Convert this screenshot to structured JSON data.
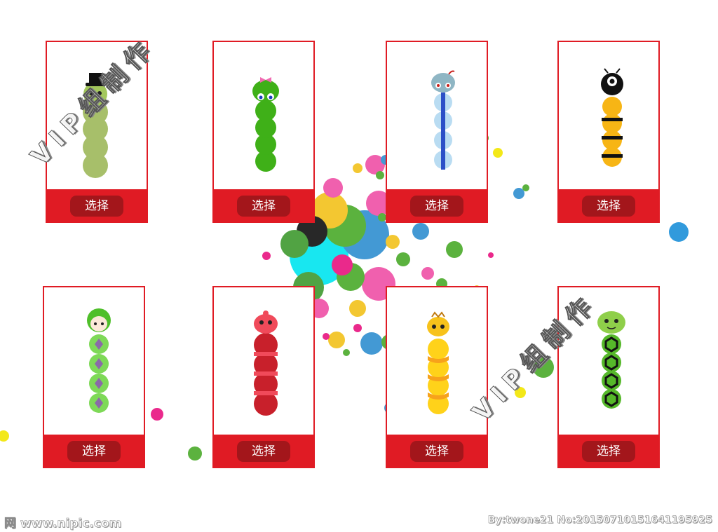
{
  "watermark": {
    "text": "VIP组制作"
  },
  "footer": {
    "site": "网 www.nipic.com",
    "credit": "By:twone21 No:20150710151641195925"
  },
  "colors": {
    "card_border": "#e01b24",
    "card_footer": "#e01b24",
    "button": "#a3161b",
    "button_text": "#ffffff"
  },
  "cards": [
    {
      "name": "card-top-hat-snake",
      "button_label": "选择",
      "snake_style": "olive-top-hat"
    },
    {
      "name": "card-green-bow-snake",
      "button_label": "选择",
      "snake_style": "green-bow"
    },
    {
      "name": "card-blue-stripe-snake",
      "button_label": "选择",
      "snake_style": "blue-stripe"
    },
    {
      "name": "card-bee-snake",
      "button_label": "选择",
      "snake_style": "bee"
    },
    {
      "name": "card-boy-snake",
      "button_label": "选择",
      "snake_style": "green-boy"
    },
    {
      "name": "card-red-snake",
      "button_label": "选择",
      "snake_style": "red-stripe"
    },
    {
      "name": "card-yellow-snake",
      "button_label": "选择",
      "snake_style": "yellow-orange"
    },
    {
      "name": "card-hexagon-snake",
      "button_label": "选择",
      "snake_style": "green-hexagon"
    }
  ]
}
